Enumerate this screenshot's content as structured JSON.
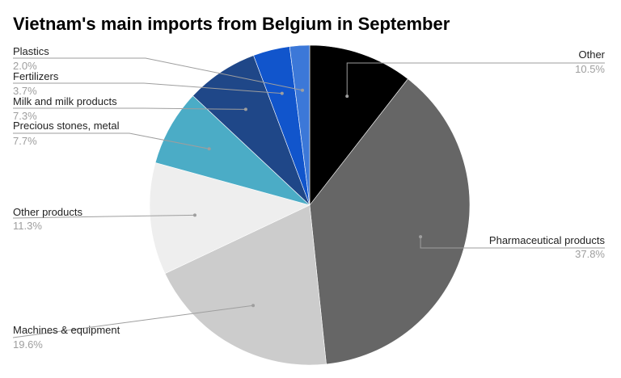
{
  "chart_data": {
    "type": "pie",
    "title": "Vietnam's main imports from Belgium in September",
    "start_angle": "top, clockwise",
    "legend": "labels with leader lines",
    "slices": [
      {
        "label": "Other",
        "value": 10.5,
        "display": "10.5%",
        "color": "#000000"
      },
      {
        "label": "Pharmaceutical products",
        "value": 37.8,
        "display": "37.8%",
        "color": "#666666"
      },
      {
        "label": "Machines & equipment",
        "value": 19.6,
        "display": "19.6%",
        "color": "#cccccc"
      },
      {
        "label": "Other products",
        "value": 11.3,
        "display": "11.3%",
        "color": "#eeeeee"
      },
      {
        "label": "Precious stones, metal",
        "value": 7.7,
        "display": "7.7%",
        "color": "#4bacc6"
      },
      {
        "label": "Milk and milk products",
        "value": 7.3,
        "display": "7.3%",
        "color": "#1f4788"
      },
      {
        "label": "Fertilizers",
        "value": 3.7,
        "display": "3.7%",
        "color": "#1155cc"
      },
      {
        "label": "Plastics",
        "value": 2.0,
        "display": "2.0%",
        "color": "#3c78d8"
      }
    ]
  }
}
